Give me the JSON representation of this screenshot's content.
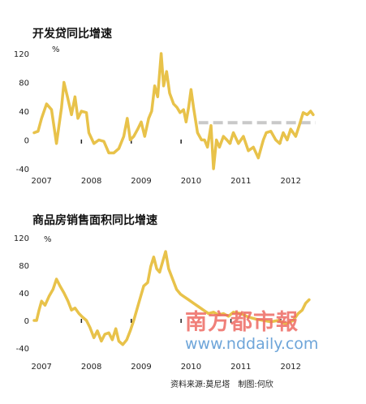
{
  "chart_data": [
    {
      "type": "line",
      "title": "开发贷同比增速",
      "unit": "%",
      "xlabel": "",
      "ylabel": "",
      "ylim": [
        -40,
        120
      ],
      "yticks": [
        "120",
        "80",
        "40",
        "0",
        "-40"
      ],
      "xticks": [
        "2007",
        "2008",
        "2009",
        "2010",
        "2011",
        "2012"
      ],
      "grid": false,
      "series": [
        {
          "values": [
            [
              2007.0,
              10
            ],
            [
              2007.08,
              12
            ],
            [
              2007.15,
              30
            ],
            [
              2007.25,
              50
            ],
            [
              2007.35,
              42
            ],
            [
              2007.45,
              -5
            ],
            [
              2007.55,
              45
            ],
            [
              2007.6,
              80
            ],
            [
              2007.67,
              60
            ],
            [
              2007.75,
              35
            ],
            [
              2007.82,
              60
            ],
            [
              2007.88,
              30
            ],
            [
              2007.95,
              40
            ],
            [
              2008.05,
              38
            ],
            [
              2008.1,
              10
            ],
            [
              2008.2,
              -5
            ],
            [
              2008.3,
              0
            ],
            [
              2008.4,
              -2
            ],
            [
              2008.5,
              -18
            ],
            [
              2008.6,
              -18
            ],
            [
              2008.7,
              -12
            ],
            [
              2008.8,
              5
            ],
            [
              2008.87,
              30
            ],
            [
              2008.93,
              0
            ],
            [
              2009.0,
              5
            ],
            [
              2009.08,
              15
            ],
            [
              2009.15,
              25
            ],
            [
              2009.22,
              5
            ],
            [
              2009.3,
              30
            ],
            [
              2009.36,
              40
            ],
            [
              2009.42,
              75
            ],
            [
              2009.48,
              60
            ],
            [
              2009.55,
              120
            ],
            [
              2009.6,
              75
            ],
            [
              2009.66,
              95
            ],
            [
              2009.72,
              65
            ],
            [
              2009.8,
              50
            ],
            [
              2009.87,
              45
            ],
            [
              2009.93,
              38
            ],
            [
              2010.0,
              42
            ],
            [
              2010.05,
              25
            ],
            [
              2010.1,
              45
            ],
            [
              2010.15,
              70
            ],
            [
              2010.2,
              45
            ],
            [
              2010.28,
              10
            ],
            [
              2010.36,
              0
            ],
            [
              2010.42,
              0
            ],
            [
              2010.48,
              -10
            ],
            [
              2010.55,
              20
            ],
            [
              2010.6,
              -40
            ],
            [
              2010.66,
              0
            ],
            [
              2010.72,
              -10
            ],
            [
              2010.8,
              5
            ],
            [
              2010.87,
              0
            ],
            [
              2010.93,
              -5
            ],
            [
              2011.0,
              10
            ],
            [
              2011.1,
              -5
            ],
            [
              2011.2,
              5
            ],
            [
              2011.3,
              -15
            ],
            [
              2011.4,
              -10
            ],
            [
              2011.5,
              -25
            ],
            [
              2011.56,
              -10
            ],
            [
              2011.6,
              0
            ],
            [
              2011.66,
              10
            ],
            [
              2011.75,
              12
            ],
            [
              2011.85,
              0
            ],
            [
              2011.93,
              -5
            ],
            [
              2012.0,
              10
            ],
            [
              2012.08,
              0
            ],
            [
              2012.15,
              15
            ],
            [
              2012.25,
              5
            ],
            [
              2012.32,
              20
            ],
            [
              2012.4,
              38
            ],
            [
              2012.48,
              35
            ],
            [
              2012.55,
              40
            ],
            [
              2012.6,
              35
            ]
          ]
        }
      ],
      "reference_line": {
        "y": 24,
        "x_range": [
          2010.3,
          2012.65
        ],
        "style": "dashed",
        "color": "#c9c9c9"
      },
      "line_color": "#e8c24a"
    },
    {
      "type": "line",
      "title": "商品房销售面积同比增速",
      "unit": "%",
      "xlabel": "",
      "ylabel": "",
      "ylim": [
        -40,
        120
      ],
      "yticks": [
        "120",
        "80",
        "40",
        "0",
        "-40"
      ],
      "xticks": [
        "2007",
        "2008",
        "2009",
        "2010",
        "2011",
        "2012"
      ],
      "grid": false,
      "series": [
        {
          "values": [
            [
              2007.0,
              0
            ],
            [
              2007.05,
              0
            ],
            [
              2007.1,
              15
            ],
            [
              2007.15,
              28
            ],
            [
              2007.22,
              22
            ],
            [
              2007.3,
              35
            ],
            [
              2007.38,
              45
            ],
            [
              2007.45,
              60
            ],
            [
              2007.52,
              50
            ],
            [
              2007.6,
              40
            ],
            [
              2007.68,
              28
            ],
            [
              2007.75,
              15
            ],
            [
              2007.82,
              18
            ],
            [
              2007.9,
              10
            ],
            [
              2007.97,
              5
            ],
            [
              2008.05,
              0
            ],
            [
              2008.12,
              -10
            ],
            [
              2008.2,
              -25
            ],
            [
              2008.27,
              -15
            ],
            [
              2008.35,
              -30
            ],
            [
              2008.42,
              -20
            ],
            [
              2008.5,
              -18
            ],
            [
              2008.57,
              -28
            ],
            [
              2008.64,
              -12
            ],
            [
              2008.7,
              -30
            ],
            [
              2008.78,
              -35
            ],
            [
              2008.86,
              -28
            ],
            [
              2008.93,
              -15
            ],
            [
              2009.0,
              0
            ],
            [
              2009.1,
              25
            ],
            [
              2009.2,
              50
            ],
            [
              2009.28,
              55
            ],
            [
              2009.34,
              78
            ],
            [
              2009.4,
              92
            ],
            [
              2009.46,
              75
            ],
            [
              2009.52,
              70
            ],
            [
              2009.58,
              85
            ],
            [
              2009.64,
              100
            ],
            [
              2009.7,
              75
            ],
            [
              2009.78,
              60
            ],
            [
              2009.86,
              45
            ],
            [
              2009.94,
              38
            ],
            [
              2010.0,
              35
            ],
            [
              2010.1,
              30
            ],
            [
              2010.2,
              25
            ],
            [
              2010.3,
              20
            ],
            [
              2010.4,
              15
            ],
            [
              2010.5,
              10
            ],
            [
              2010.6,
              12
            ],
            [
              2010.7,
              8
            ],
            [
              2010.8,
              10
            ],
            [
              2010.9,
              6
            ],
            [
              2011.0,
              12
            ],
            [
              2011.15,
              10
            ],
            [
              2011.3,
              5
            ],
            [
              2011.45,
              2
            ],
            [
              2011.6,
              0
            ],
            [
              2011.75,
              -2
            ],
            [
              2011.9,
              0
            ],
            [
              2012.05,
              -5
            ],
            [
              2012.2,
              0
            ],
            [
              2012.3,
              10
            ],
            [
              2012.38,
              15
            ],
            [
              2012.45,
              25
            ],
            [
              2012.52,
              30
            ]
          ]
        }
      ],
      "line_color": "#e8c24a"
    }
  ],
  "source": "资料来源:莫尼塔　制图:何欣",
  "watermark": {
    "logo": "南方都市報",
    "url": "www.nddaily.com"
  }
}
